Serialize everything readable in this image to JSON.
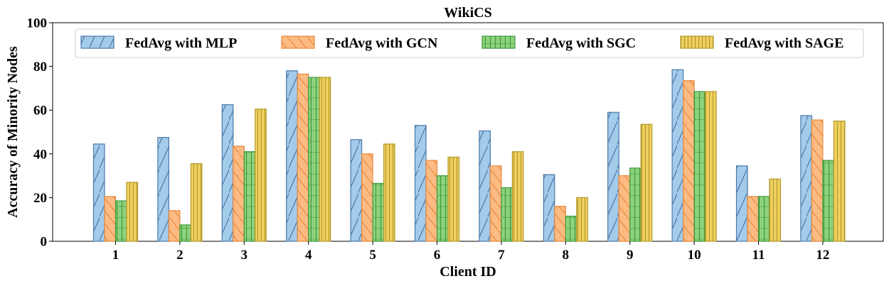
{
  "chart_data": {
    "type": "bar",
    "title": "WikiCS",
    "xlabel": "Client ID",
    "ylabel": "Accuracy of Minority Nodes",
    "ylim": [
      0,
      100
    ],
    "yticks": [
      "0",
      "20",
      "40",
      "60",
      "80",
      "100"
    ],
    "categories": [
      "1",
      "2",
      "3",
      "4",
      "5",
      "6",
      "7",
      "8",
      "9",
      "10",
      "11",
      "12"
    ],
    "series": [
      {
        "name": "FedAvg with MLP",
        "values": [
          44.5,
          47.5,
          62.5,
          78,
          46.5,
          53,
          50.5,
          30.5,
          59,
          78.5,
          34.5,
          57.5
        ],
        "color": "#a3cbea",
        "edge": "#4a79a8",
        "hatch": "diag"
      },
      {
        "name": "FedAvg with GCN",
        "values": [
          20.5,
          14,
          43.5,
          76.5,
          40,
          37,
          34.5,
          16,
          30,
          73.5,
          20.5,
          55.5
        ],
        "color": "#fdbb84",
        "edge": "#e8893a",
        "hatch": "backdiag"
      },
      {
        "name": "FedAvg with SGC",
        "values": [
          18.5,
          7.5,
          41,
          75,
          26.5,
          30,
          24.5,
          11.5,
          33.5,
          68.5,
          20.5,
          37
        ],
        "color": "#8fd27d",
        "edge": "#3c9a3c",
        "hatch": "grid"
      },
      {
        "name": "FedAvg with SAGE",
        "values": [
          27,
          35.5,
          60.5,
          75,
          44.5,
          38.5,
          41,
          20,
          53.5,
          68.5,
          28.5,
          55
        ],
        "color": "#f0d060",
        "edge": "#b39a2a",
        "hatch": "vert"
      }
    ],
    "legend": "top",
    "grid": false
  }
}
